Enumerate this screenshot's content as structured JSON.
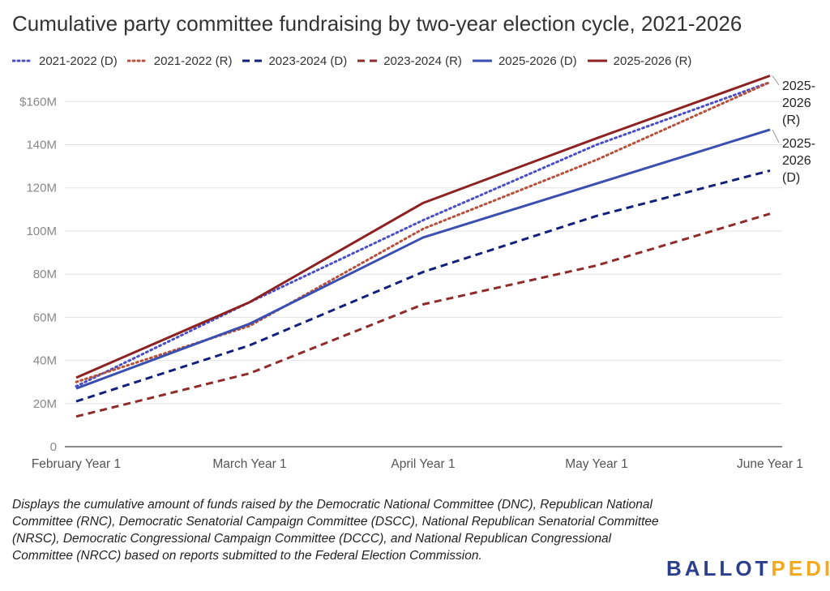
{
  "title": "Cumulative party committee fundraising by two-year election cycle, 2021-2026",
  "caption": "Displays the cumulative amount of funds raised by the Democratic National Committee (DNC), Republican National Committee (RNC), Democratic Senatorial Campaign Committee (DSCC), National Republican Senatorial Committee (NRSC), Democratic Congressional Campaign Committee (DCCC), and National Republican Congressional Committee (NRCC) based on reports submitted to the Federal Election Commission.",
  "logo": {
    "part1": "BALLOT",
    "part2": "PEDIA"
  },
  "colors": {
    "dem_2122": "#4a4fc4",
    "rep_2122": "#b5523b",
    "dem_2324": "#12207a",
    "rep_2324": "#8e2b2b",
    "dem_2526": "#3a4fb0",
    "rep_2526": "#8c2322"
  },
  "chart_data": {
    "type": "line",
    "categories": [
      "February Year 1",
      "March Year 1",
      "April Year 1",
      "May Year 1",
      "June Year 1"
    ],
    "y_ticks": [
      0,
      20,
      40,
      60,
      80,
      100,
      120,
      140,
      160
    ],
    "y_tick_labels": [
      "0",
      "20M",
      "40M",
      "60M",
      "80M",
      "100M",
      "120M",
      "140M",
      "$160M"
    ],
    "ylim": [
      0,
      170
    ],
    "units": "millions of dollars",
    "grid": true,
    "legend_position": "top",
    "series": [
      {
        "name": "2021-2022 (D)",
        "values": [
          28,
          67,
          105,
          140,
          169
        ],
        "color": "#4a4fc4",
        "dash": "dotted"
      },
      {
        "name": "2021-2022 (R)",
        "values": [
          30,
          56,
          101,
          133,
          169
        ],
        "color": "#b5523b",
        "dash": "dotted"
      },
      {
        "name": "2023-2024 (D)",
        "values": [
          21,
          47,
          81,
          107,
          128
        ],
        "color": "#12207a",
        "dash": "dashed"
      },
      {
        "name": "2023-2024 (R)",
        "values": [
          14,
          34,
          66,
          84,
          108
        ],
        "color": "#8e2b2b",
        "dash": "dashed"
      },
      {
        "name": "2025-2026 (D)",
        "values": [
          27,
          57,
          97,
          122,
          147
        ],
        "color": "#3a4fb0",
        "dash": "solid"
      },
      {
        "name": "2025-2026 (R)",
        "values": [
          32,
          67,
          113,
          143,
          172
        ],
        "color": "#8c2322",
        "dash": "solid"
      }
    ],
    "end_labels": [
      {
        "series": "2025-2026 (R)",
        "lines": [
          "2025-",
          "2026",
          "(R)"
        ]
      },
      {
        "series": "2025-2026 (D)",
        "lines": [
          "2025-",
          "2026",
          "(D)"
        ]
      }
    ]
  }
}
